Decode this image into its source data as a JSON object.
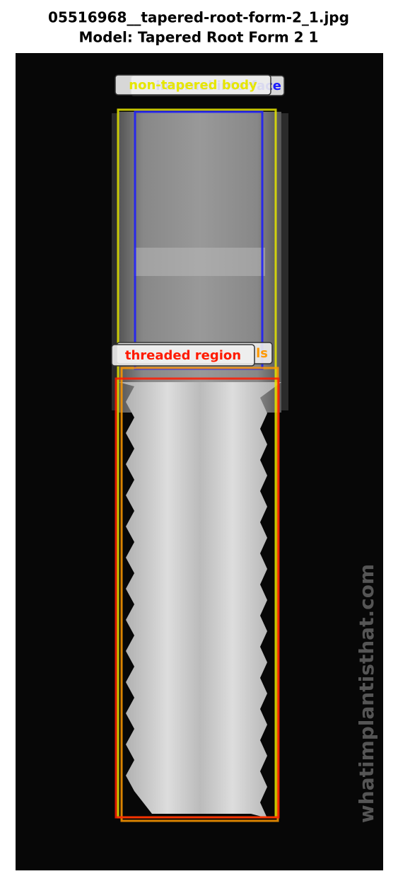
{
  "title": {
    "line1": "05516968__tapered-root-form-2_1.jpg",
    "line2": "Model: Tapered Root Form 2 1"
  },
  "watermark": "whatimplantisthat.com",
  "annotations": [
    {
      "label": "internal interface",
      "color": "#1a1aff"
    },
    {
      "label": "non-tapered body",
      "color": "#e6e600"
    },
    {
      "label": "ls",
      "color": "#ff9900"
    },
    {
      "label": "threaded region",
      "color": "#ff1a00"
    }
  ]
}
